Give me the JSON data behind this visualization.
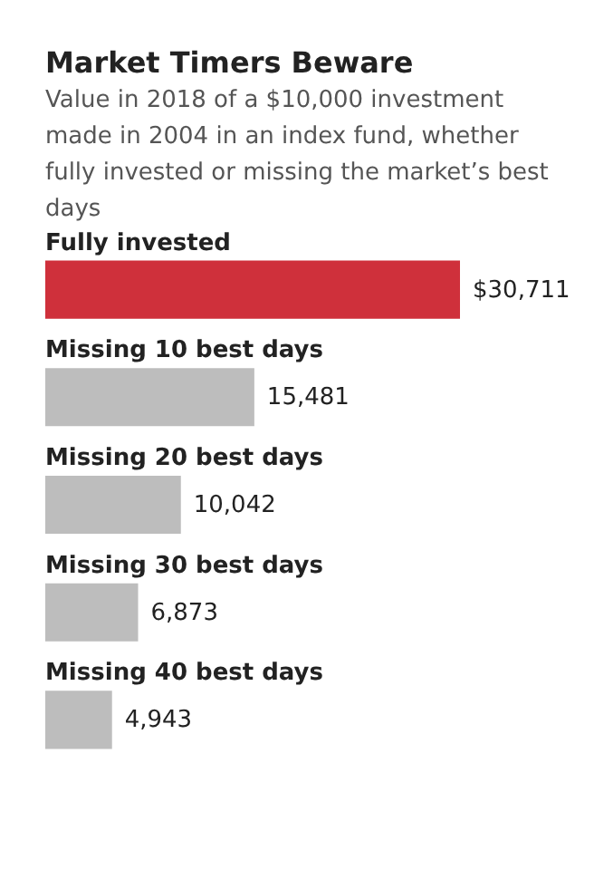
{
  "chart_data": {
    "type": "bar",
    "orientation": "horizontal",
    "title": "Market Timers Beware",
    "subtitle": "Value in 2018 of a $10,000 investment made in 2004 in an index fund, whether fully invested or missing the market’s best days",
    "categories": [
      "Fully invested",
      "Missing 10 best days",
      "Missing 20 best days",
      "Missing 30 best days",
      "Missing 40 best days"
    ],
    "values": [
      30711,
      15481,
      10042,
      6873,
      4943
    ],
    "colors": [
      "#cf303b",
      "#bdbdbd",
      "#bdbdbd",
      "#bdbdbd",
      "#bdbdbd"
    ],
    "value_labels": [
      "$30,711",
      "15,481",
      "10,042",
      "6,873",
      "4,943"
    ]
  }
}
